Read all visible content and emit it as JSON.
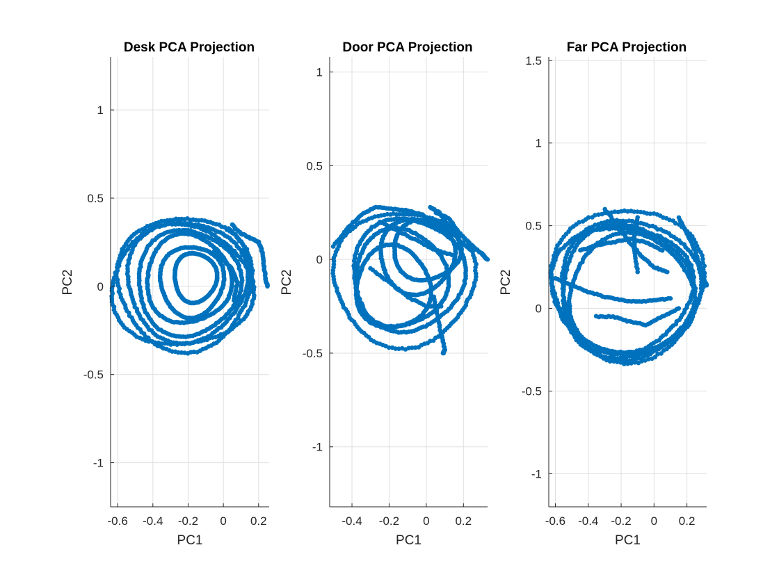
{
  "chart_data": [
    {
      "type": "scatter",
      "title": "Desk PCA Projection",
      "xlabel": "PC1",
      "ylabel": "PC2",
      "xlim": [
        -0.64,
        0.26
      ],
      "ylim": [
        -1.25,
        1.3
      ],
      "xticks": [
        -0.6,
        -0.4,
        -0.2,
        0,
        0.2
      ],
      "xtick_labels": [
        "-0.6",
        "-0.4",
        "-0.2",
        "0",
        "0.2"
      ],
      "yticks": [
        -1,
        -0.5,
        0,
        0.5,
        1
      ],
      "ytick_labels": [
        "-1",
        "-0.5",
        "0",
        "0.5",
        "1"
      ],
      "grid": true,
      "marker_color": "#0072BD",
      "traces": [
        {
          "cx": -0.22,
          "cy": 0.02,
          "rx": 0.38,
          "ry": 0.38,
          "turns": 1.0,
          "start": 0.0
        },
        {
          "cx": -0.21,
          "cy": 0.03,
          "rx": 0.34,
          "ry": 0.34,
          "turns": 1.0,
          "start": 0.6
        },
        {
          "cx": -0.2,
          "cy": 0.02,
          "rx": 0.29,
          "ry": 0.3,
          "turns": 1.0,
          "start": 1.3
        },
        {
          "cx": -0.2,
          "cy": 0.04,
          "rx": 0.24,
          "ry": 0.25,
          "turns": 1.0,
          "start": 2.1
        },
        {
          "cx": -0.18,
          "cy": 0.03,
          "rx": 0.18,
          "ry": 0.2,
          "turns": 1.0,
          "start": 0.3
        },
        {
          "cx": -0.16,
          "cy": 0.05,
          "rx": 0.12,
          "ry": 0.14,
          "turns": 1.0,
          "start": 1.0
        },
        {
          "cx": -0.24,
          "cy": 0.0,
          "rx": 0.4,
          "ry": 0.34,
          "turns": 1.0,
          "start": 2.5
        }
      ],
      "paths": [
        [
          [
            0.05,
            0.35
          ],
          [
            0.1,
            0.3
          ],
          [
            0.16,
            0.27
          ],
          [
            0.2,
            0.25
          ],
          [
            0.22,
            0.2
          ],
          [
            0.23,
            0.12
          ],
          [
            0.24,
            0.04
          ],
          [
            0.25,
            0.0
          ]
        ],
        [
          [
            0.03,
            0.33
          ],
          [
            0.08,
            0.28
          ],
          [
            0.12,
            0.22
          ],
          [
            0.14,
            0.15
          ],
          [
            0.15,
            0.08
          ],
          [
            0.16,
            0.02
          ]
        ],
        [
          [
            -0.05,
            0.2
          ],
          [
            0.0,
            0.15
          ],
          [
            0.05,
            0.1
          ],
          [
            0.08,
            0.02
          ],
          [
            0.06,
            -0.08
          ]
        ]
      ]
    },
    {
      "type": "scatter",
      "title": "Door PCA Projection",
      "xlabel": "PC1",
      "ylabel": "PC2",
      "xlim": [
        -0.52,
        0.33
      ],
      "ylim": [
        -1.32,
        1.08
      ],
      "xticks": [
        -0.4,
        -0.2,
        0,
        0.2
      ],
      "xtick_labels": [
        "-0.4",
        "-0.2",
        "0",
        "0.2"
      ],
      "yticks": [
        -1,
        -0.5,
        0,
        0.5,
        1
      ],
      "ytick_labels": [
        "-1",
        "-0.5",
        "0",
        "0.5",
        "1"
      ],
      "grid": true,
      "marker_color": "#0072BD",
      "traces": [
        {
          "cx": -0.12,
          "cy": -0.1,
          "rx": 0.38,
          "ry": 0.36,
          "turns": 1.0,
          "start": 0.2
        },
        {
          "cx": -0.1,
          "cy": -0.08,
          "rx": 0.3,
          "ry": 0.3,
          "turns": 1.0,
          "start": 1.1
        },
        {
          "cx": -0.14,
          "cy": -0.1,
          "rx": 0.25,
          "ry": 0.26,
          "turns": 1.0,
          "start": 2.0
        },
        {
          "cx": -0.05,
          "cy": 0.02,
          "rx": 0.2,
          "ry": 0.2,
          "turns": 1.0,
          "start": 0.7
        },
        {
          "cx": 0.0,
          "cy": 0.05,
          "rx": 0.18,
          "ry": 0.16,
          "turns": 1.0,
          "start": 1.6
        },
        {
          "cx": -0.18,
          "cy": -0.15,
          "rx": 0.2,
          "ry": 0.22,
          "turns": 1.0,
          "start": 2.6
        }
      ],
      "paths": [
        [
          [
            -0.5,
            0.07
          ],
          [
            -0.42,
            0.17
          ],
          [
            -0.35,
            0.24
          ],
          [
            -0.27,
            0.28
          ],
          [
            -0.18,
            0.27
          ],
          [
            -0.1,
            0.26
          ],
          [
            -0.02,
            0.24
          ]
        ],
        [
          [
            0.05,
            0.25
          ],
          [
            0.12,
            0.22
          ],
          [
            0.18,
            0.14
          ],
          [
            0.25,
            0.07
          ],
          [
            0.3,
            0.03
          ],
          [
            0.33,
            0.0
          ]
        ],
        [
          [
            0.02,
            0.28
          ],
          [
            0.07,
            0.25
          ],
          [
            0.12,
            0.18
          ],
          [
            0.18,
            0.1
          ],
          [
            0.24,
            0.05
          ]
        ],
        [
          [
            0.04,
            -0.2
          ],
          [
            0.06,
            -0.3
          ],
          [
            0.08,
            -0.4
          ],
          [
            0.1,
            -0.48
          ],
          [
            0.09,
            -0.5
          ]
        ],
        [
          [
            -0.25,
            0.2
          ],
          [
            -0.15,
            0.15
          ],
          [
            -0.05,
            0.1
          ],
          [
            0.05,
            0.05
          ],
          [
            0.15,
            0.02
          ]
        ],
        [
          [
            -0.3,
            -0.05
          ],
          [
            -0.2,
            -0.12
          ],
          [
            -0.1,
            -0.2
          ],
          [
            0.0,
            -0.25
          ],
          [
            0.08,
            -0.25
          ]
        ]
      ]
    },
    {
      "type": "scatter",
      "title": "Far PCA Projection",
      "xlabel": "PC1",
      "ylabel": "PC2",
      "xlim": [
        -0.64,
        0.32
      ],
      "ylim": [
        -1.2,
        1.52
      ],
      "xticks": [
        -0.6,
        -0.4,
        -0.2,
        0,
        0.2
      ],
      "xtick_labels": [
        "-0.6",
        "-0.4",
        "-0.2",
        "0",
        "0.2"
      ],
      "yticks": [
        -1,
        -0.5,
        0,
        0.5,
        1,
        1.5
      ],
      "ytick_labels": [
        "-1",
        "-0.5",
        "0",
        "0.5",
        "1",
        "1.5"
      ],
      "grid": true,
      "marker_color": "#0072BD",
      "traces": [
        {
          "cx": -0.16,
          "cy": 0.15,
          "rx": 0.46,
          "ry": 0.46,
          "turns": 1.0,
          "start": 0.0
        },
        {
          "cx": -0.15,
          "cy": 0.12,
          "rx": 0.42,
          "ry": 0.42,
          "turns": 1.0,
          "start": 0.9
        },
        {
          "cx": -0.17,
          "cy": 0.1,
          "rx": 0.4,
          "ry": 0.4,
          "turns": 1.0,
          "start": 1.8
        },
        {
          "cx": -0.14,
          "cy": 0.08,
          "rx": 0.38,
          "ry": 0.36,
          "turns": 1.0,
          "start": 2.7
        },
        {
          "cx": -0.2,
          "cy": 0.12,
          "rx": 0.43,
          "ry": 0.38,
          "turns": 1.0,
          "start": 0.4
        }
      ],
      "paths": [
        [
          [
            -0.6,
            0.18
          ],
          [
            -0.5,
            0.14
          ],
          [
            -0.4,
            0.1
          ],
          [
            -0.3,
            0.07
          ],
          [
            -0.2,
            0.05
          ],
          [
            -0.1,
            0.04
          ],
          [
            0.0,
            0.05
          ],
          [
            0.1,
            0.06
          ]
        ],
        [
          [
            -0.3,
            0.6
          ],
          [
            -0.22,
            0.5
          ],
          [
            -0.15,
            0.4
          ],
          [
            -0.08,
            0.32
          ],
          [
            0.0,
            0.25
          ],
          [
            0.08,
            0.22
          ]
        ],
        [
          [
            -0.1,
            0.55
          ],
          [
            -0.12,
            0.45
          ],
          [
            -0.12,
            0.35
          ],
          [
            -0.1,
            0.22
          ]
        ],
        [
          [
            -0.45,
            0.35
          ],
          [
            -0.35,
            0.38
          ],
          [
            -0.25,
            0.4
          ],
          [
            -0.15,
            0.42
          ],
          [
            -0.05,
            0.4
          ],
          [
            0.05,
            0.35
          ]
        ],
        [
          [
            -0.35,
            -0.05
          ],
          [
            -0.25,
            -0.05
          ],
          [
            -0.15,
            -0.08
          ],
          [
            -0.05,
            -0.1
          ],
          [
            0.05,
            -0.05
          ],
          [
            0.15,
            0.0
          ]
        ],
        [
          [
            0.15,
            0.55
          ],
          [
            0.2,
            0.45
          ],
          [
            0.25,
            0.35
          ],
          [
            0.28,
            0.25
          ],
          [
            0.3,
            0.18
          ],
          [
            0.32,
            0.14
          ]
        ]
      ]
    }
  ]
}
